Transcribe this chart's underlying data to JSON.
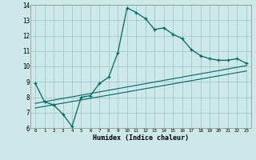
{
  "xlabel": "Humidex (Indice chaleur)",
  "ylabel": "",
  "xlim": [
    -0.5,
    23.5
  ],
  "ylim": [
    6,
    14
  ],
  "xticks": [
    0,
    1,
    2,
    3,
    4,
    5,
    6,
    7,
    8,
    9,
    10,
    11,
    12,
    13,
    14,
    15,
    16,
    17,
    18,
    19,
    20,
    21,
    22,
    23
  ],
  "yticks": [
    6,
    7,
    8,
    9,
    10,
    11,
    12,
    13,
    14
  ],
  "bg_color": "#cce8e8",
  "grid_color": "#aacccc",
  "line_color": "#006666",
  "line1_x": [
    0,
    1,
    2,
    3,
    4,
    5,
    6,
    7,
    8,
    9,
    10,
    11,
    12,
    13,
    14,
    15,
    16,
    17,
    18,
    19,
    20,
    21,
    22,
    23
  ],
  "line1_y": [
    8.9,
    7.7,
    7.5,
    6.9,
    6.1,
    8.0,
    8.1,
    8.9,
    9.3,
    10.9,
    13.8,
    13.5,
    13.1,
    12.4,
    12.5,
    12.1,
    11.8,
    11.1,
    10.7,
    10.5,
    10.4,
    10.4,
    10.5,
    10.2
  ],
  "line2_x": [
    0,
    23
  ],
  "line2_y": [
    7.6,
    10.05
  ],
  "line3_x": [
    0,
    23
  ],
  "line3_y": [
    7.3,
    9.7
  ]
}
